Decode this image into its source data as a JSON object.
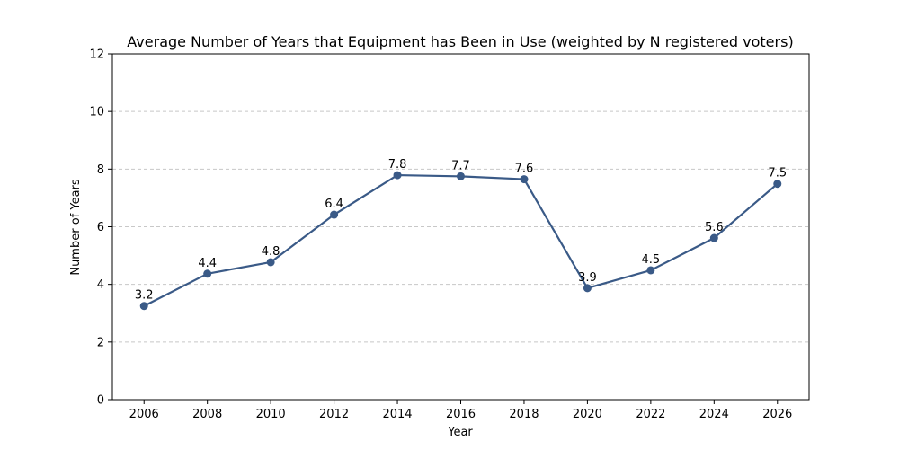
{
  "chart_data": {
    "type": "line",
    "title": "Average Number of Years that Equipment has Been in Use (weighted by N registered voters)",
    "xlabel": "Year",
    "ylabel": "Number of Years",
    "x": [
      2006,
      2008,
      2010,
      2012,
      2014,
      2016,
      2018,
      2020,
      2022,
      2024,
      2026
    ],
    "values": [
      3.25,
      4.37,
      4.77,
      6.42,
      7.79,
      7.75,
      7.65,
      3.87,
      4.49,
      5.61,
      7.49
    ],
    "data_labels": [
      "3.2",
      "4.4",
      "4.8",
      "6.4",
      "7.8",
      "7.7",
      "7.6",
      "3.9",
      "4.5",
      "5.6",
      "7.5"
    ],
    "xlim": [
      2005,
      2027
    ],
    "ylim": [
      0,
      12
    ],
    "xticks": [
      2006,
      2008,
      2010,
      2012,
      2014,
      2016,
      2018,
      2020,
      2022,
      2024,
      2026
    ],
    "yticks": [
      0,
      2,
      4,
      6,
      8,
      10,
      12
    ],
    "grid": "horizontal dashed",
    "line_color": "#3a5a87"
  }
}
